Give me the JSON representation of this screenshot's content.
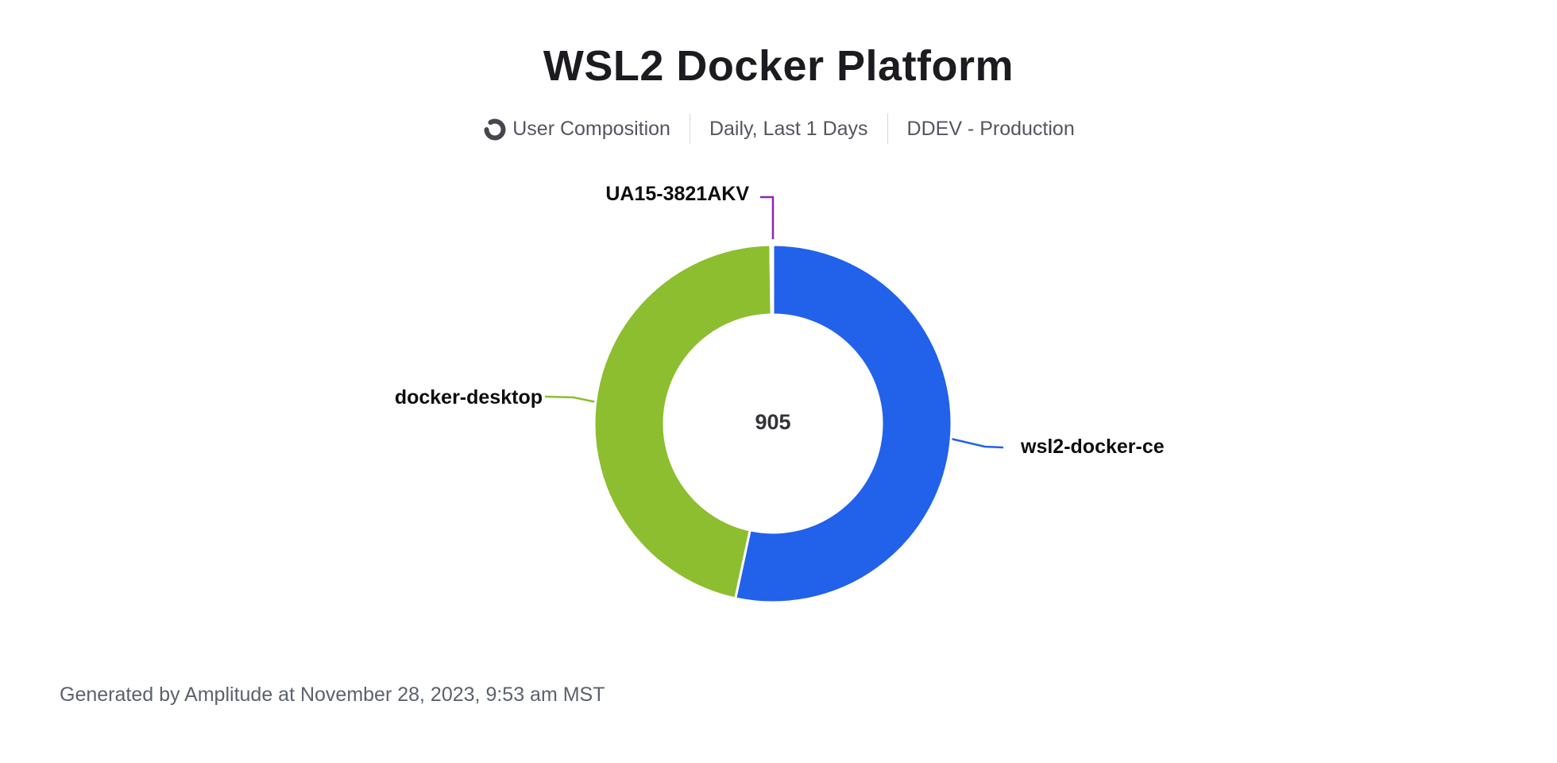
{
  "header": {
    "title": "WSL2 Docker Platform",
    "meta": [
      {
        "icon": "donut-chart-icon",
        "label": "User Composition"
      },
      {
        "label": "Daily, Last 1 Days"
      },
      {
        "label": "DDEV - Production"
      }
    ]
  },
  "chart_data": {
    "type": "pie",
    "subtype": "donut",
    "title": "WSL2 Docker Platform",
    "total": 905,
    "center_label": "905",
    "start_angle_deg": 0,
    "direction": "clockwise",
    "legend_position": "callout-labels",
    "slices": [
      {
        "label": "wsl2-docker-ce",
        "value": 483,
        "percent_est": 53.4,
        "color": "#2261ea"
      },
      {
        "label": "docker-desktop",
        "value": 420,
        "percent_est": 46.4,
        "color": "#8cbe2f"
      },
      {
        "label": "UA15-3821AKV",
        "value": 2,
        "percent_est": 0.2,
        "color": "#8e24b8"
      }
    ]
  },
  "colors": {
    "title": "#1b1b20",
    "meta_text": "#55555e",
    "meta_icon": "#46464f",
    "center_total": "#333338",
    "slice_label": "#0d0d10",
    "footer": "#5b626d",
    "background": "#ffffff"
  },
  "footer": {
    "text": "Generated by Amplitude at November 28, 2023, 9:53 am MST"
  }
}
